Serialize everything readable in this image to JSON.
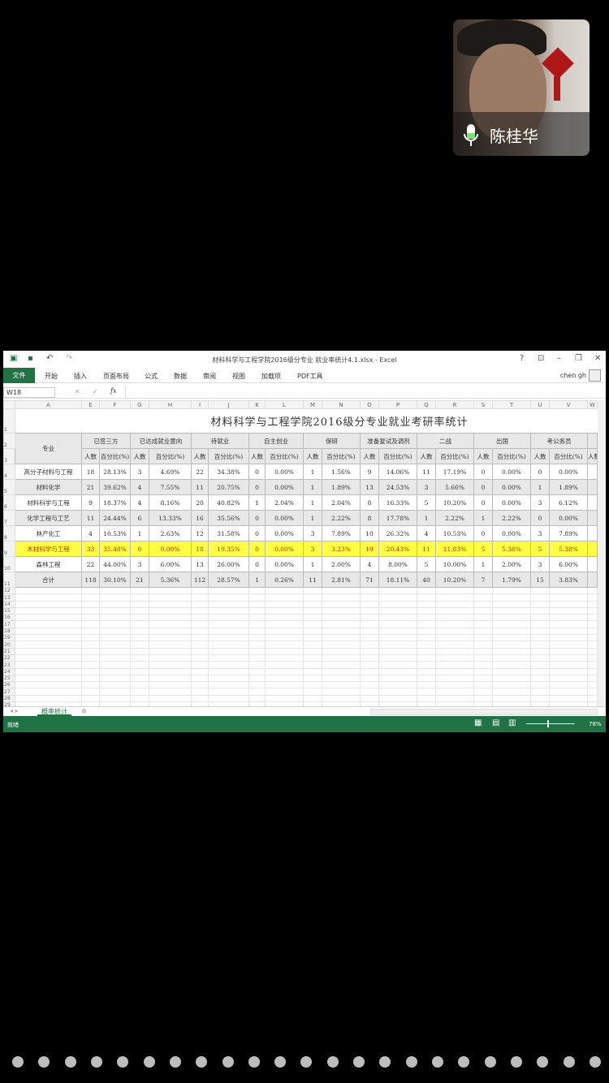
{
  "video": {
    "name": "陈桂华",
    "mic_color": "#7fe07a"
  },
  "excel": {
    "window_title": "材料科学与工程学院2016级分专业 就业率统计4.1.xlsx - Excel",
    "tabs": [
      "文件",
      "开始",
      "插入",
      "页面布局",
      "公式",
      "数据",
      "审阅",
      "视图",
      "加载项",
      "PDF工具"
    ],
    "user": "chen gh",
    "name_box": "W18",
    "fx": "fx",
    "columns": [
      "A",
      "E",
      "F",
      "G",
      "H",
      "I",
      "J",
      "K",
      "L",
      "M",
      "N",
      "O",
      "P",
      "Q",
      "R",
      "S",
      "T",
      "U",
      "V",
      "W"
    ],
    "sheet_title": "材料科学与工程学院2016级分专业就业考研率统计",
    "major_header": "专业",
    "groups": [
      "已签三方",
      "已达成就业意向",
      "待就业",
      "自主创业",
      "保研",
      "准备复试及调剂",
      "二战",
      "出国",
      "考公务员"
    ],
    "sub_count": "人数",
    "sub_pct": "百分比(%)",
    "rows": [
      {
        "name": "高分子材料与工程",
        "v": [
          "18",
          "28.13%",
          "3",
          "4.69%",
          "22",
          "34.38%",
          "0",
          "0.00%",
          "1",
          "1.56%",
          "9",
          "14.06%",
          "11",
          "17.19%",
          "0",
          "0.00%",
          "0",
          "0.00%"
        ]
      },
      {
        "name": "材料化学",
        "v": [
          "21",
          "39.62%",
          "4",
          "7.55%",
          "11",
          "20.75%",
          "0",
          "0.00%",
          "1",
          "1.89%",
          "13",
          "24.53%",
          "3",
          "5.66%",
          "0",
          "0.00%",
          "1",
          "1.89%"
        ]
      },
      {
        "name": "材料科学与工程",
        "v": [
          "9",
          "18.37%",
          "4",
          "8.16%",
          "20",
          "40.82%",
          "1",
          "2.04%",
          "1",
          "2.04%",
          "8",
          "16.33%",
          "5",
          "10.20%",
          "0",
          "0.00%",
          "3",
          "6.12%"
        ]
      },
      {
        "name": "化学工程与工艺",
        "v": [
          "11",
          "24.44%",
          "6",
          "13.33%",
          "16",
          "35.56%",
          "0",
          "0.00%",
          "1",
          "2.22%",
          "8",
          "17.78%",
          "1",
          "2.22%",
          "1",
          "2.22%",
          "0",
          "0.00%"
        ]
      },
      {
        "name": "林产化工",
        "v": [
          "4",
          "10.53%",
          "1",
          "2.63%",
          "12",
          "31.58%",
          "0",
          "0.00%",
          "3",
          "7.89%",
          "10",
          "26.32%",
          "4",
          "10.53%",
          "0",
          "0.00%",
          "3",
          "7.89%"
        ]
      },
      {
        "name": "木材科学与工程",
        "v": [
          "33",
          "35.48%",
          "0",
          "0.00%",
          "18",
          "19.35%",
          "0",
          "0.00%",
          "3",
          "3.23%",
          "19",
          "20.43%",
          "11",
          "11.83%",
          "5",
          "5.38%",
          "5",
          "5.38%"
        ]
      },
      {
        "name": "森林工程",
        "v": [
          "22",
          "44.00%",
          "3",
          "6.00%",
          "13",
          "26.00%",
          "0",
          "0.00%",
          "1",
          "2.00%",
          "4",
          "8.00%",
          "5",
          "10.00%",
          "1",
          "2.00%",
          "3",
          "6.00%"
        ]
      },
      {
        "name": "合计",
        "v": [
          "118",
          "30.10%",
          "21",
          "5.36%",
          "112",
          "28.57%",
          "1",
          "0.26%",
          "11",
          "2.81%",
          "71",
          "18.11%",
          "40",
          "10.20%",
          "7",
          "1.79%",
          "15",
          "3.83%"
        ]
      }
    ],
    "highlight_color": "#ffff44",
    "sheet_tab": "概率统计",
    "status": "就绪",
    "zoom": "78%",
    "brand_color": "#217346"
  }
}
